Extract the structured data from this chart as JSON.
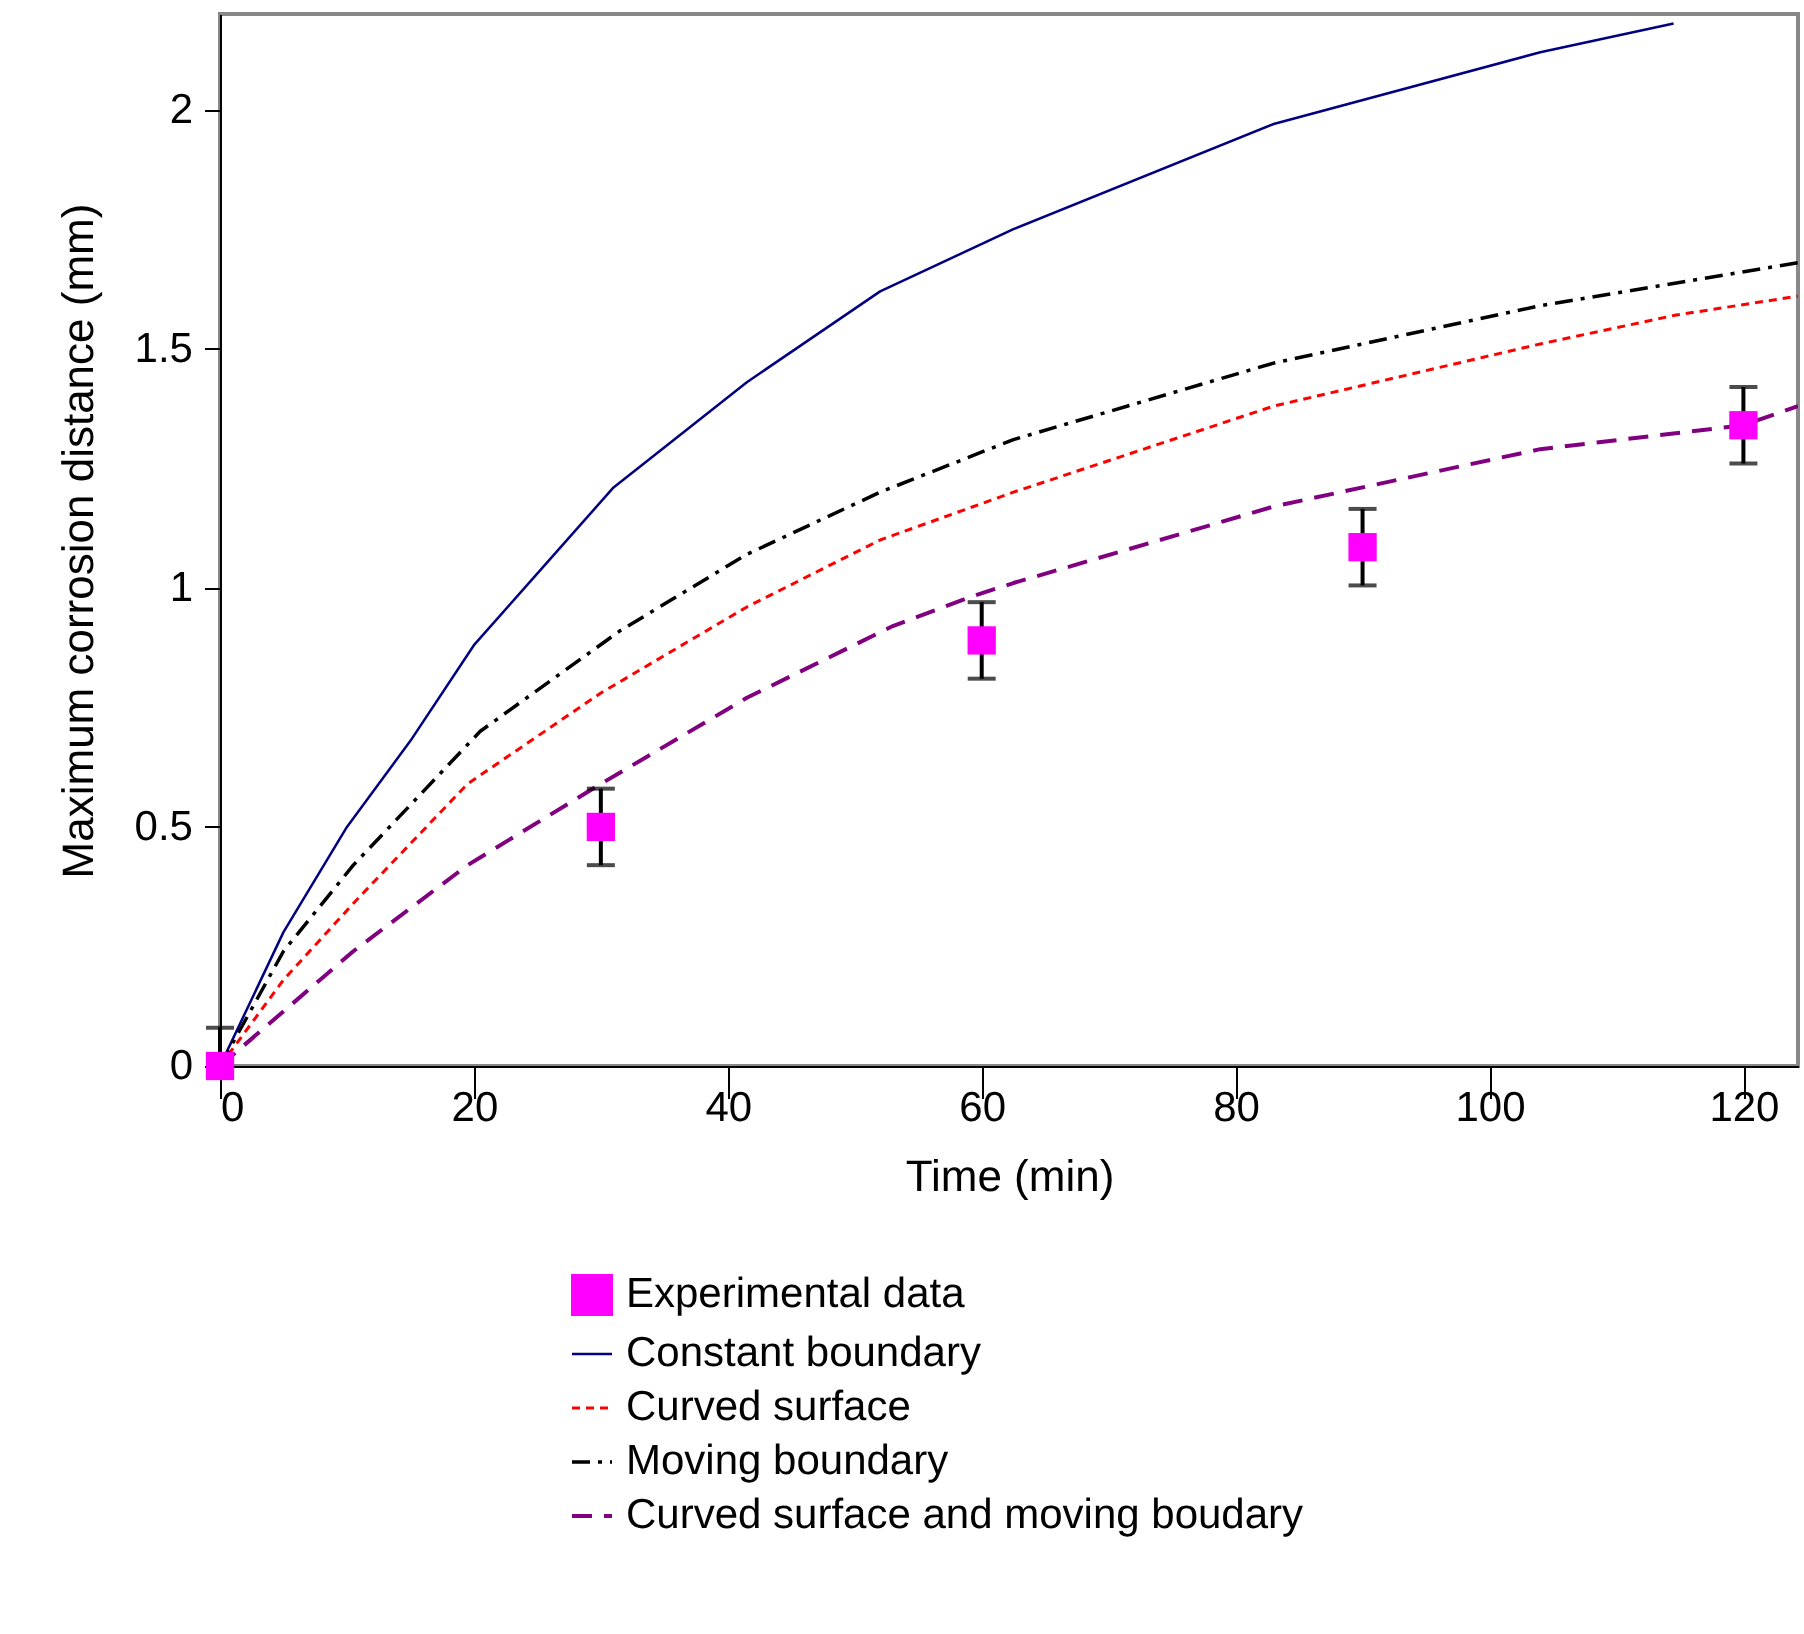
{
  "chart_data": {
    "type": "line",
    "xlabel": "Time (min)",
    "ylabel": "Maximum corrosion distance (mm)",
    "xlim": [
      0,
      124.3
    ],
    "ylim": [
      0,
      2.2
    ],
    "xticks": [
      0,
      20,
      40,
      60,
      80,
      100,
      120
    ],
    "yticks": [
      0,
      0.5,
      1,
      1.5,
      2
    ],
    "grid": false,
    "legend": "bottom",
    "series": [
      {
        "name": "Experimental data",
        "type": "scatter",
        "marker": "square",
        "color": "#ff00ff",
        "x": [
          0,
          30,
          60,
          90,
          120
        ],
        "values": [
          0,
          0.5,
          0.89,
          1.085,
          1.34
        ],
        "errors": [
          [
            0,
            0.08
          ],
          0.08,
          0.08,
          0.08,
          0.08
        ]
      },
      {
        "name": "Constant boundary",
        "type": "line",
        "line_style": "solid",
        "color": "#000080",
        "x": [
          0,
          5,
          10,
          15,
          20,
          26,
          31,
          41.5,
          52,
          62.5,
          83,
          104,
          114.5
        ],
        "values": [
          0,
          0.28,
          0.5,
          0.68,
          0.88,
          1.06,
          1.21,
          1.43,
          1.62,
          1.75,
          1.97,
          2.12,
          2.18
        ]
      },
      {
        "name": "Curved surface",
        "type": "line",
        "line_style": "dashed",
        "color": "#ff0000",
        "x": [
          0,
          5,
          10.5,
          19.5,
          30,
          41.5,
          52,
          62.5,
          83,
          104,
          114.6,
          124.3
        ],
        "values": [
          0,
          0.18,
          0.34,
          0.59,
          0.78,
          0.96,
          1.1,
          1.2,
          1.38,
          1.51,
          1.57,
          1.61
        ]
      },
      {
        "name": "Moving boundary",
        "type": "line",
        "line_style": "dashdot",
        "color": "#000000",
        "x": [
          0,
          5,
          10.5,
          20.5,
          31.5,
          41.5,
          52,
          62.5,
          83,
          104,
          124.3
        ],
        "values": [
          0,
          0.24,
          0.42,
          0.7,
          0.91,
          1.07,
          1.2,
          1.31,
          1.47,
          1.59,
          1.68
        ]
      },
      {
        "name": "Curved surface and moving boudary",
        "type": "line",
        "line_style": "longdash",
        "color": "#800080",
        "x": [
          0,
          10.5,
          19.5,
          30,
          41.5,
          53,
          59,
          62.5,
          83,
          104,
          120,
          124.3
        ],
        "values": [
          0,
          0.24,
          0.42,
          0.59,
          0.77,
          0.92,
          0.98,
          1.01,
          1.17,
          1.29,
          1.34,
          1.38
        ]
      }
    ]
  }
}
